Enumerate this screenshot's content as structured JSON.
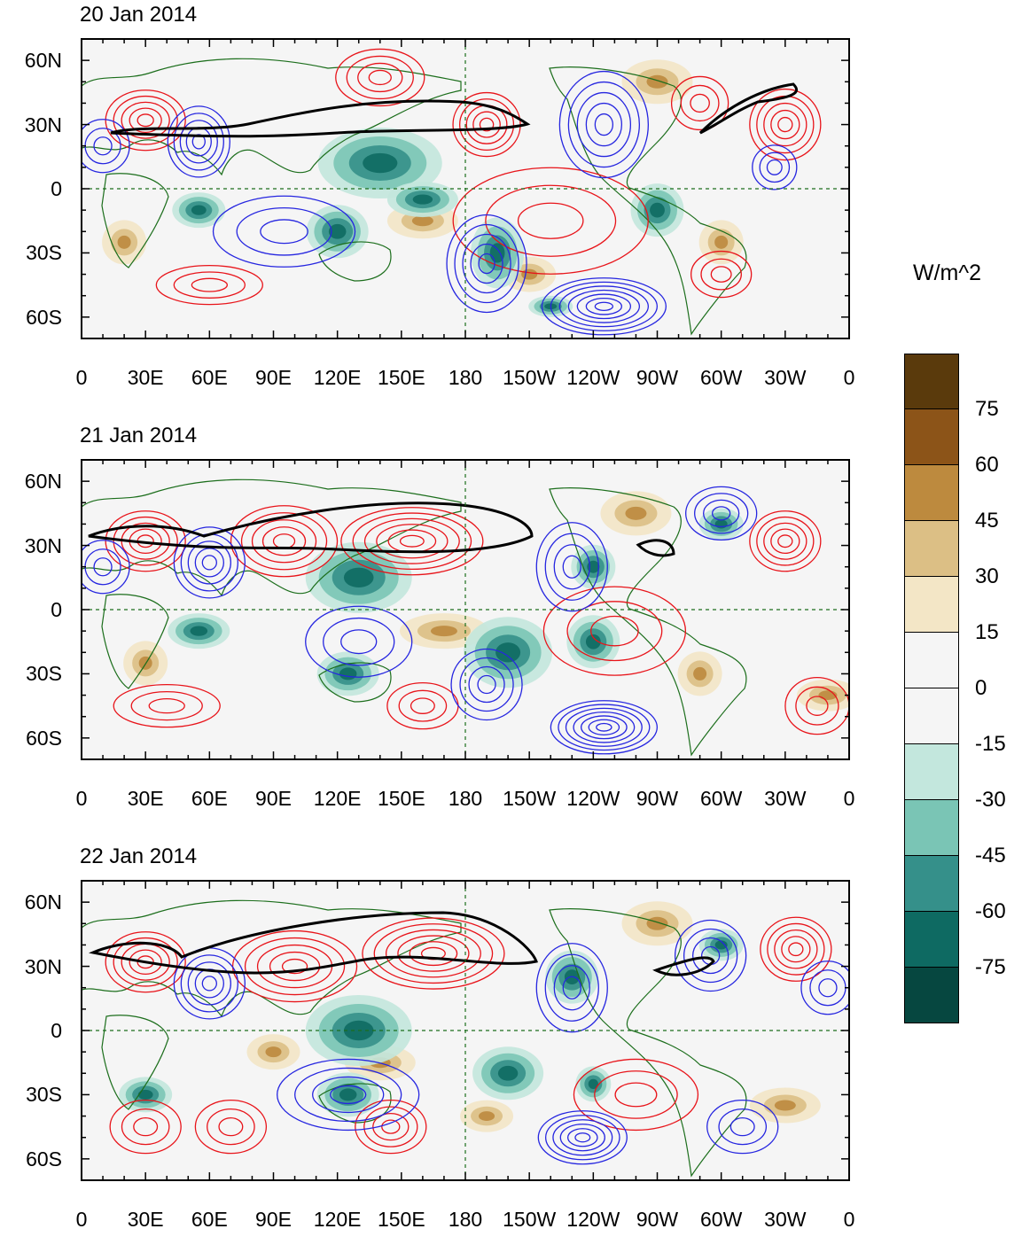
{
  "panels": [
    {
      "title": "20 Jan 2014"
    },
    {
      "title": "21 Jan 2014"
    },
    {
      "title": "22 Jan 2014"
    }
  ],
  "lat_labels": [
    "60N",
    "30N",
    "0",
    "30S",
    "60S"
  ],
  "lon_labels": [
    "0",
    "30E",
    "60E",
    "90E",
    "120E",
    "150E",
    "180",
    "150W",
    "120W",
    "90W",
    "60W",
    "30W",
    "0"
  ],
  "colorbar": {
    "units": "W/m^2",
    "levels": [
      "75",
      "60",
      "45",
      "30",
      "15",
      "0",
      "-15",
      "-30",
      "-45",
      "-60",
      "-75"
    ],
    "colors": [
      "#5a3a0c",
      "#8c5418",
      "#bd8a3e",
      "#dcbf85",
      "#f3e6c6",
      "#f5f5f5",
      "#f5f5f5",
      "#c3e7dd",
      "#7ac5b5",
      "#35908a",
      "#0e6a62",
      "#064740"
    ]
  },
  "colors": {
    "positive_contour": "#e8141a",
    "negative_contour": "#2626e0",
    "jet_contour": "#000000",
    "coastline": "#1c6e1c",
    "background": "#f5f5f5"
  }
}
